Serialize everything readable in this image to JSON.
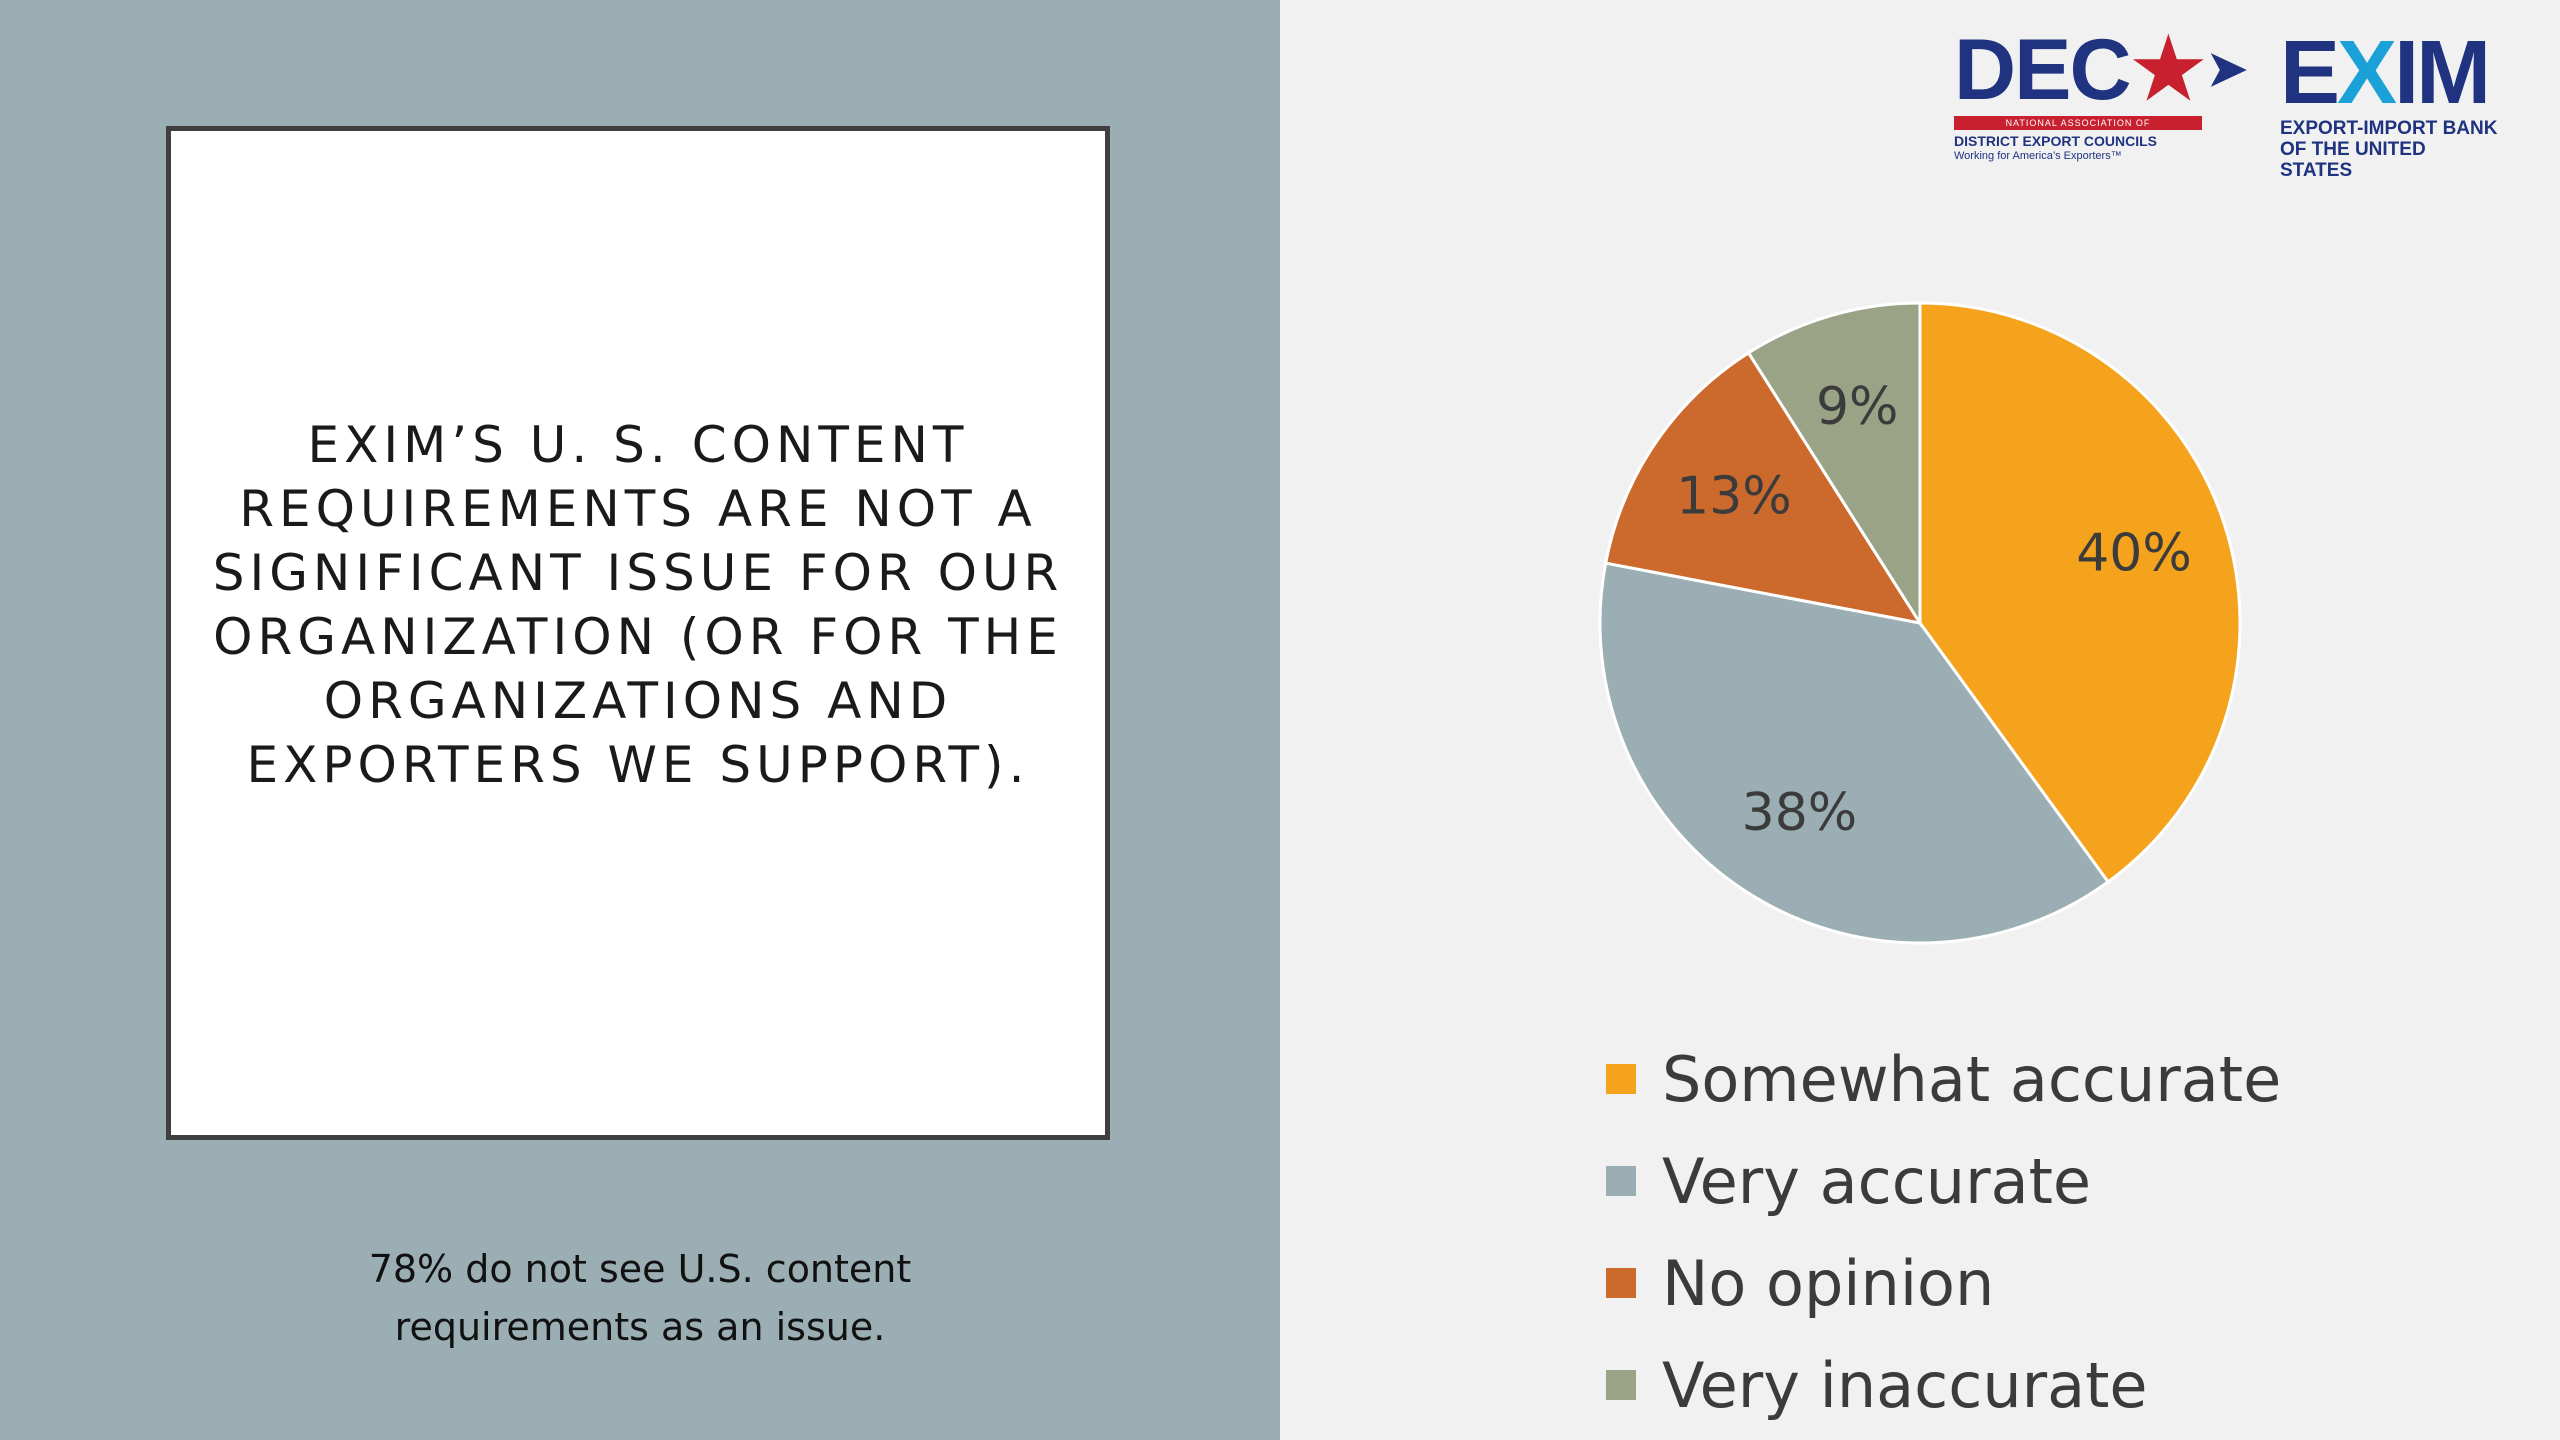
{
  "slide": {
    "title": "EXIM’s U. S. content requirements are not a significant issue for our organization (or for the organizations and exporters we support).",
    "caption_line1": "78% do not see U.S. content",
    "caption_line2": "requirements as an issue."
  },
  "logos": {
    "dec": {
      "word": "DEC",
      "star": "★",
      "arrow": "➤",
      "bar_text": "NATIONAL ASSOCIATION OF",
      "subtitle": "DISTRICT EXPORT COUNCILS",
      "tagline": "Working for America’s Exporters™"
    },
    "exim": {
      "word_a": "E",
      "word_b": "X",
      "word_c": "IM",
      "subtitle_line1": "EXPORT-IMPORT BANK",
      "subtitle_line2": "OF THE UNITED STATES"
    }
  },
  "chart_data": {
    "type": "pie",
    "title": "",
    "categories": [
      "Somewhat accurate",
      "Very accurate",
      "No opinion",
      "Very inaccurate"
    ],
    "values": [
      40,
      38,
      13,
      9
    ],
    "labels": [
      "40%",
      "38%",
      "13%",
      "9%"
    ],
    "colors": [
      "#f5a31c",
      "#9aaeb4",
      "#cc6a2e",
      "#9ba386"
    ],
    "start_angle": "12 o'clock",
    "direction": "clockwise",
    "legend_position": "bottom"
  }
}
